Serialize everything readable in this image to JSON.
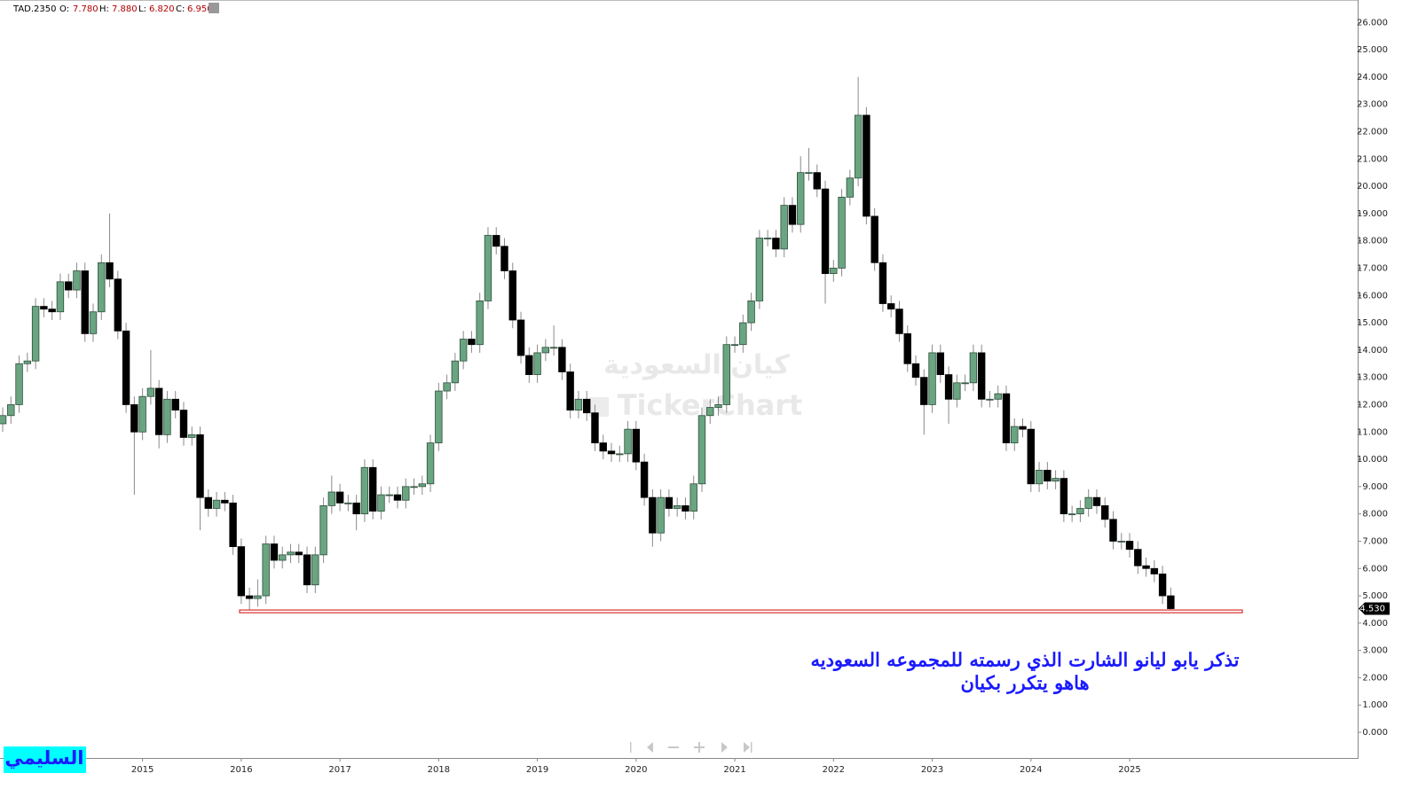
{
  "header": {
    "symbol": "TAD.2350",
    "open_label": "O:",
    "open": "7.780",
    "high_label": "H:",
    "high": "7.880",
    "low_label": "L:",
    "low": "6.820",
    "close_label": "C:",
    "close": "6.950"
  },
  "watermark": {
    "arabic": "كيان السعودية",
    "brand": "TickerChart"
  },
  "signature": "السليمي",
  "chart_data": {
    "type": "candlestick",
    "annotations": [
      "تذكر يابو ليانو الشارت الذي رسمته للمجموعه السعوديه",
      "هاهو يتكرر بكيان"
    ],
    "categories": [
      null,
      null,
      null,
      null,
      null,
      null,
      null,
      null,
      null,
      null,
      null,
      null,
      null,
      null,
      null,
      null,
      null,
      "2015",
      null,
      null,
      null,
      null,
      null,
      null,
      null,
      null,
      null,
      null,
      null,
      "2016",
      null,
      null,
      null,
      null,
      null,
      null,
      null,
      null,
      null,
      null,
      null,
      "2017",
      null,
      null,
      null,
      null,
      null,
      null,
      null,
      null,
      null,
      null,
      null,
      "2018",
      null,
      null,
      null,
      null,
      null,
      null,
      null,
      null,
      null,
      null,
      null,
      "2019",
      null,
      null,
      null,
      null,
      null,
      null,
      null,
      null,
      null,
      null,
      null,
      "2020",
      null,
      null,
      null,
      null,
      null,
      null,
      null,
      null,
      null,
      null,
      null,
      "2021",
      null,
      null,
      null,
      null,
      null,
      null,
      null,
      null,
      null,
      null,
      null,
      "2022",
      null,
      null,
      null,
      null,
      null,
      null,
      null,
      null,
      null,
      null,
      null,
      "2023",
      null,
      null,
      null,
      null,
      null,
      null,
      null,
      null,
      null,
      null,
      null,
      "2024",
      null,
      null,
      null,
      null,
      null,
      null,
      null,
      null,
      null,
      null,
      null,
      "2025",
      null,
      null,
      null,
      null,
      null
    ],
    "open": [
      11.3,
      11.6,
      12.0,
      13.5,
      13.6,
      15.6,
      15.5,
      15.4,
      16.5,
      16.2,
      16.9,
      14.6,
      15.4,
      17.2,
      16.6,
      14.7,
      12.0,
      11.0,
      12.3,
      12.6,
      10.9,
      12.2,
      11.8,
      10.8,
      10.9,
      8.6,
      8.2,
      8.5,
      8.4,
      6.8,
      5.0,
      4.9,
      5.0,
      6.9,
      6.3,
      6.5,
      6.6,
      6.5,
      5.4,
      6.5,
      8.3,
      8.8,
      8.4,
      8.4,
      8.0,
      9.7,
      8.1,
      8.7,
      8.7,
      8.5,
      9.0,
      9.0,
      9.1,
      10.6,
      12.5,
      12.8,
      13.6,
      14.4,
      14.2,
      15.8,
      18.2,
      17.8,
      16.9,
      15.1,
      13.8,
      13.1,
      13.9,
      14.1,
      14.1,
      13.2,
      11.8,
      12.2,
      11.7,
      10.6,
      10.3,
      10.2,
      10.2,
      11.1,
      9.9,
      8.6,
      7.3,
      8.6,
      8.2,
      8.3,
      8.1,
      9.1,
      11.6,
      11.9,
      12.0,
      14.2,
      14.2,
      15.0,
      15.8,
      18.1,
      18.1,
      17.7,
      19.3,
      18.6,
      20.5,
      20.5,
      19.9,
      16.8,
      17.0,
      19.6,
      20.3,
      22.6,
      18.9,
      17.2,
      15.7,
      15.5,
      14.6,
      13.5,
      13.0,
      12.0,
      13.9,
      13.1,
      12.2,
      12.8,
      12.8,
      13.9,
      12.2,
      12.2,
      12.4,
      10.6,
      11.2,
      11.1,
      9.1,
      9.6,
      9.2,
      9.3,
      8.0,
      8.0,
      8.2,
      8.6,
      8.3,
      7.8,
      7.0,
      7.0,
      6.7,
      6.1,
      6.0,
      5.8,
      5.0
    ],
    "high": [
      11.9,
      12.3,
      13.8,
      13.9,
      15.9,
      15.9,
      15.8,
      16.8,
      16.8,
      17.2,
      17.2,
      15.7,
      17.5,
      19.0,
      16.9,
      15.0,
      12.3,
      12.6,
      14.0,
      12.9,
      12.5,
      12.5,
      12.1,
      11.2,
      11.2,
      8.9,
      8.8,
      8.8,
      8.7,
      7.1,
      5.3,
      5.6,
      7.2,
      7.2,
      6.8,
      6.9,
      6.9,
      6.8,
      6.8,
      8.6,
      9.4,
      9.1,
      8.7,
      8.7,
      10.0,
      10.0,
      9.0,
      9.0,
      9.0,
      9.3,
      9.3,
      9.4,
      10.9,
      12.8,
      13.1,
      13.9,
      14.7,
      14.7,
      16.1,
      18.5,
      18.5,
      18.1,
      17.2,
      15.4,
      14.1,
      14.2,
      14.4,
      14.9,
      14.4,
      13.5,
      12.5,
      12.5,
      12.0,
      10.9,
      10.6,
      10.5,
      11.4,
      11.4,
      10.2,
      8.9,
      8.9,
      8.9,
      8.6,
      8.6,
      9.4,
      11.9,
      12.2,
      12.3,
      14.5,
      14.5,
      15.3,
      16.1,
      18.4,
      18.4,
      18.4,
      19.6,
      19.6,
      21.1,
      21.4,
      20.8,
      20.2,
      17.3,
      19.9,
      20.6,
      24.0,
      22.9,
      19.2,
      17.5,
      16.0,
      15.8,
      14.9,
      13.8,
      13.3,
      14.2,
      14.2,
      13.4,
      13.1,
      13.1,
      14.2,
      14.2,
      12.5,
      12.7,
      12.7,
      11.5,
      11.5,
      11.4,
      9.9,
      9.9,
      9.6,
      9.6,
      8.3,
      8.5,
      8.9,
      8.9,
      8.6,
      8.1,
      7.3,
      7.3,
      7.0,
      6.4,
      6.3,
      6.1,
      5.3
    ],
    "low": [
      11.0,
      11.3,
      11.7,
      13.2,
      13.3,
      15.2,
      15.1,
      15.1,
      15.9,
      15.9,
      14.3,
      14.3,
      15.1,
      16.3,
      14.4,
      11.7,
      8.7,
      10.7,
      12.0,
      10.4,
      10.6,
      11.5,
      10.5,
      10.5,
      7.4,
      7.9,
      7.9,
      8.1,
      6.5,
      4.7,
      4.5,
      4.6,
      4.7,
      6.0,
      6.0,
      6.2,
      6.2,
      5.1,
      5.1,
      6.2,
      8.0,
      8.1,
      8.1,
      7.4,
      7.7,
      7.8,
      7.8,
      8.4,
      8.2,
      8.2,
      8.7,
      8.7,
      8.8,
      10.3,
      12.2,
      12.5,
      13.3,
      13.9,
      13.9,
      15.5,
      17.5,
      16.6,
      14.8,
      13.5,
      12.8,
      12.8,
      13.6,
      13.8,
      12.9,
      11.5,
      11.5,
      11.4,
      10.3,
      10.0,
      9.9,
      9.9,
      9.9,
      9.6,
      8.3,
      6.8,
      7.0,
      7.9,
      7.9,
      7.8,
      7.8,
      8.8,
      11.3,
      11.6,
      11.7,
      13.9,
      13.9,
      14.7,
      15.5,
      17.8,
      17.4,
      17.4,
      18.3,
      18.3,
      20.2,
      19.6,
      15.7,
      16.5,
      16.7,
      19.3,
      20.0,
      18.6,
      16.9,
      15.4,
      15.2,
      14.3,
      13.2,
      12.7,
      10.9,
      11.7,
      12.8,
      11.3,
      11.9,
      12.5,
      12.5,
      11.9,
      11.9,
      11.9,
      10.3,
      10.3,
      10.8,
      8.8,
      8.8,
      8.9,
      8.9,
      7.7,
      7.7,
      7.7,
      7.9,
      8.0,
      7.5,
      6.7,
      6.7,
      6.4,
      5.8,
      5.7,
      5.5,
      4.7,
      4.45
    ],
    "close": [
      11.6,
      12.0,
      13.5,
      13.6,
      15.6,
      15.5,
      15.4,
      16.5,
      16.2,
      16.9,
      14.6,
      15.4,
      17.2,
      16.6,
      14.7,
      12.0,
      11.0,
      12.3,
      12.6,
      10.9,
      12.2,
      11.8,
      10.8,
      10.9,
      8.6,
      8.2,
      8.5,
      8.4,
      6.8,
      5.0,
      4.9,
      5.0,
      6.9,
      6.3,
      6.5,
      6.6,
      6.5,
      5.4,
      6.5,
      8.3,
      8.8,
      8.4,
      8.4,
      8.0,
      9.7,
      8.1,
      8.7,
      8.7,
      8.5,
      9.0,
      9.0,
      9.1,
      10.6,
      12.5,
      12.8,
      13.6,
      14.4,
      14.2,
      15.8,
      18.2,
      17.8,
      16.9,
      15.1,
      13.8,
      13.1,
      13.9,
      14.1,
      14.1,
      13.2,
      11.8,
      12.2,
      11.7,
      10.6,
      10.3,
      10.2,
      10.2,
      11.1,
      9.9,
      8.6,
      7.3,
      8.6,
      8.2,
      8.3,
      8.1,
      9.1,
      11.6,
      11.9,
      12.0,
      14.2,
      14.2,
      15.0,
      15.8,
      18.1,
      18.1,
      17.7,
      19.3,
      18.6,
      20.5,
      20.5,
      19.9,
      16.8,
      17.0,
      19.6,
      20.3,
      22.6,
      18.9,
      17.2,
      15.7,
      15.5,
      14.6,
      13.5,
      13.0,
      12.0,
      13.9,
      13.1,
      12.2,
      12.8,
      12.8,
      13.9,
      12.2,
      12.2,
      12.4,
      10.6,
      11.2,
      11.1,
      9.1,
      9.6,
      9.2,
      9.3,
      8.0,
      8.0,
      8.2,
      8.6,
      8.3,
      7.8,
      7.0,
      7.0,
      6.7,
      6.1,
      6.0,
      5.8,
      5.0,
      4.53
    ],
    "up_color": "#6aa582",
    "down_color": "#000000",
    "last_price": {
      "value": 4.53,
      "label": "4.530"
    },
    "support_zone": [
      4.38,
      4.48
    ],
    "support_color": "#d9302c",
    "ylim": [
      -0.94,
      26.82
    ],
    "yticks": [
      {
        "value": 0,
        "label": "0.000"
      },
      {
        "value": 1,
        "label": "1.000"
      },
      {
        "value": 2,
        "label": "2.000"
      },
      {
        "value": 3,
        "label": "3.000"
      },
      {
        "value": 4,
        "label": "4.000"
      },
      {
        "value": 5,
        "label": "5.000"
      },
      {
        "value": 6,
        "label": "6.000"
      },
      {
        "value": 7,
        "label": "7.000"
      },
      {
        "value": 8,
        "label": "8.000"
      },
      {
        "value": 9,
        "label": "9.000"
      },
      {
        "value": 10,
        "label": "10.000"
      },
      {
        "value": 11,
        "label": "11.000"
      },
      {
        "value": 12,
        "label": "12.000"
      },
      {
        "value": 13,
        "label": "13.000"
      },
      {
        "value": 14,
        "label": "14.000"
      },
      {
        "value": 15,
        "label": "15.000"
      },
      {
        "value": 16,
        "label": "16.000"
      },
      {
        "value": 17,
        "label": "17.000"
      },
      {
        "value": 18,
        "label": "18.000"
      },
      {
        "value": 19,
        "label": "19.000"
      },
      {
        "value": 20,
        "label": "20.000"
      },
      {
        "value": 21,
        "label": "21.000"
      },
      {
        "value": 22,
        "label": "22.000"
      },
      {
        "value": 23,
        "label": "23.000"
      },
      {
        "value": 24,
        "label": "24.000"
      },
      {
        "value": 25,
        "label": "25.000"
      },
      {
        "value": 26,
        "label": "26.000"
      }
    ],
    "grid": false
  }
}
